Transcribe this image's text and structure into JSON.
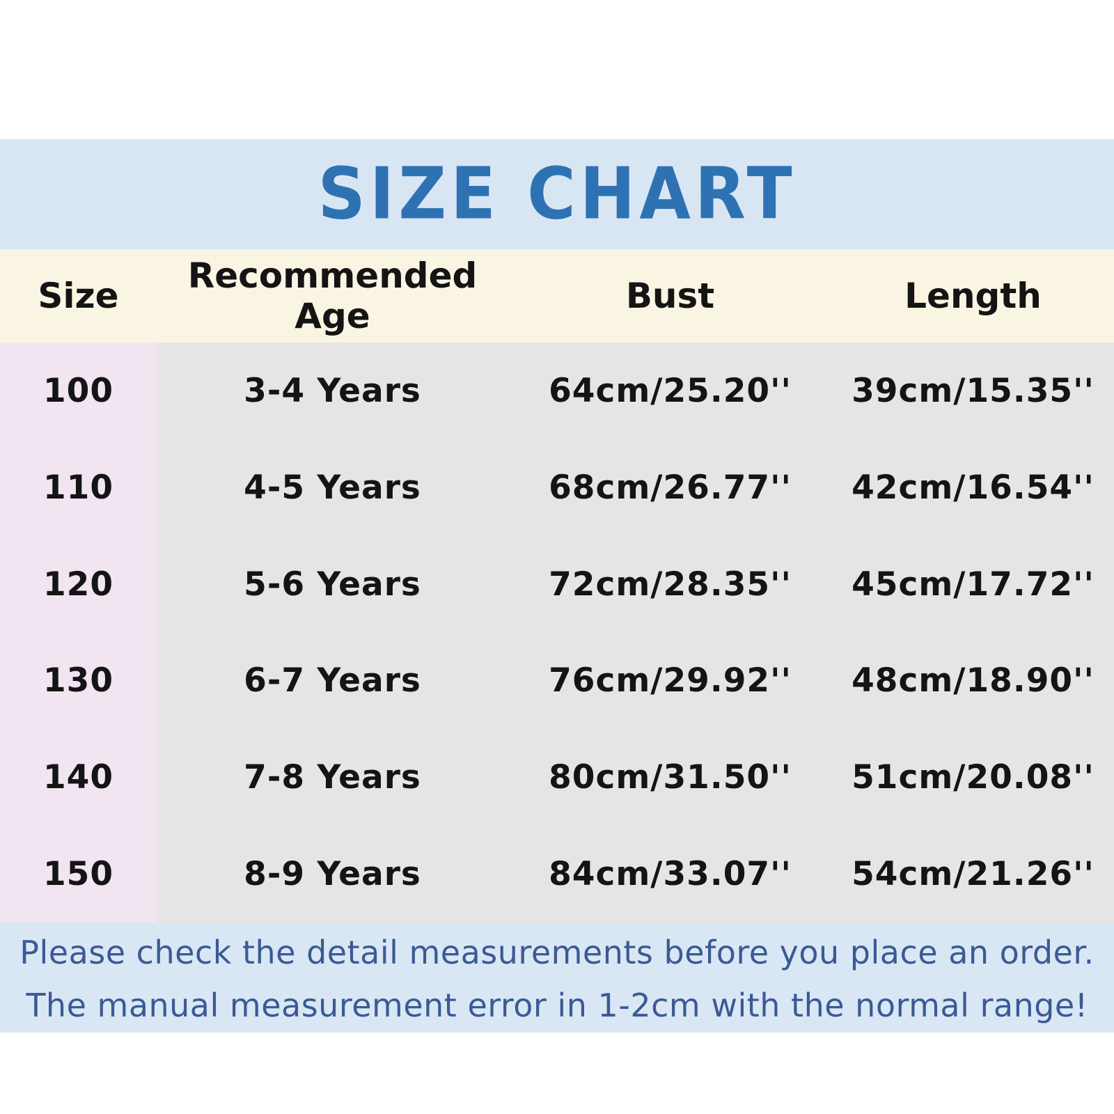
{
  "title": "SIZE CHART",
  "chart_data": {
    "type": "table",
    "title": "SIZE CHART",
    "columns": [
      "Size",
      "Recommended Age",
      "Bust",
      "Length"
    ],
    "rows": [
      [
        "100",
        "3-4 Years",
        "64cm/25.20''",
        "39cm/15.35''"
      ],
      [
        "110",
        "4-5 Years",
        "68cm/26.77''",
        "42cm/16.54''"
      ],
      [
        "120",
        "5-6 Years",
        "72cm/28.35''",
        "45cm/17.72''"
      ],
      [
        "130",
        "6-7 Years",
        "76cm/29.92''",
        "48cm/18.90''"
      ],
      [
        "140",
        "7-8 Years",
        "80cm/31.50''",
        "51cm/20.08''"
      ],
      [
        "150",
        "8-9 Years",
        "84cm/33.07''",
        "54cm/21.26''"
      ]
    ],
    "notes": [
      "Please check the detail measurements before you place an order.",
      "The manual measurement error in 1-2cm with the normal range!"
    ]
  },
  "footer": {
    "line1": "Please check the detail measurements before you place an order.",
    "line2": "The manual measurement error in 1-2cm with the normal range!"
  },
  "colors": {
    "banner_bg": "#d8e6f3",
    "title_text": "#2e72b4",
    "header_row_bg": "#faf5e3",
    "size_column_bg": "#f0e5f1",
    "table_bg": "#e7e4e6",
    "footer_bg": "#d9e7f4",
    "footer_text": "#3a5a95",
    "table_text": "#141414"
  }
}
